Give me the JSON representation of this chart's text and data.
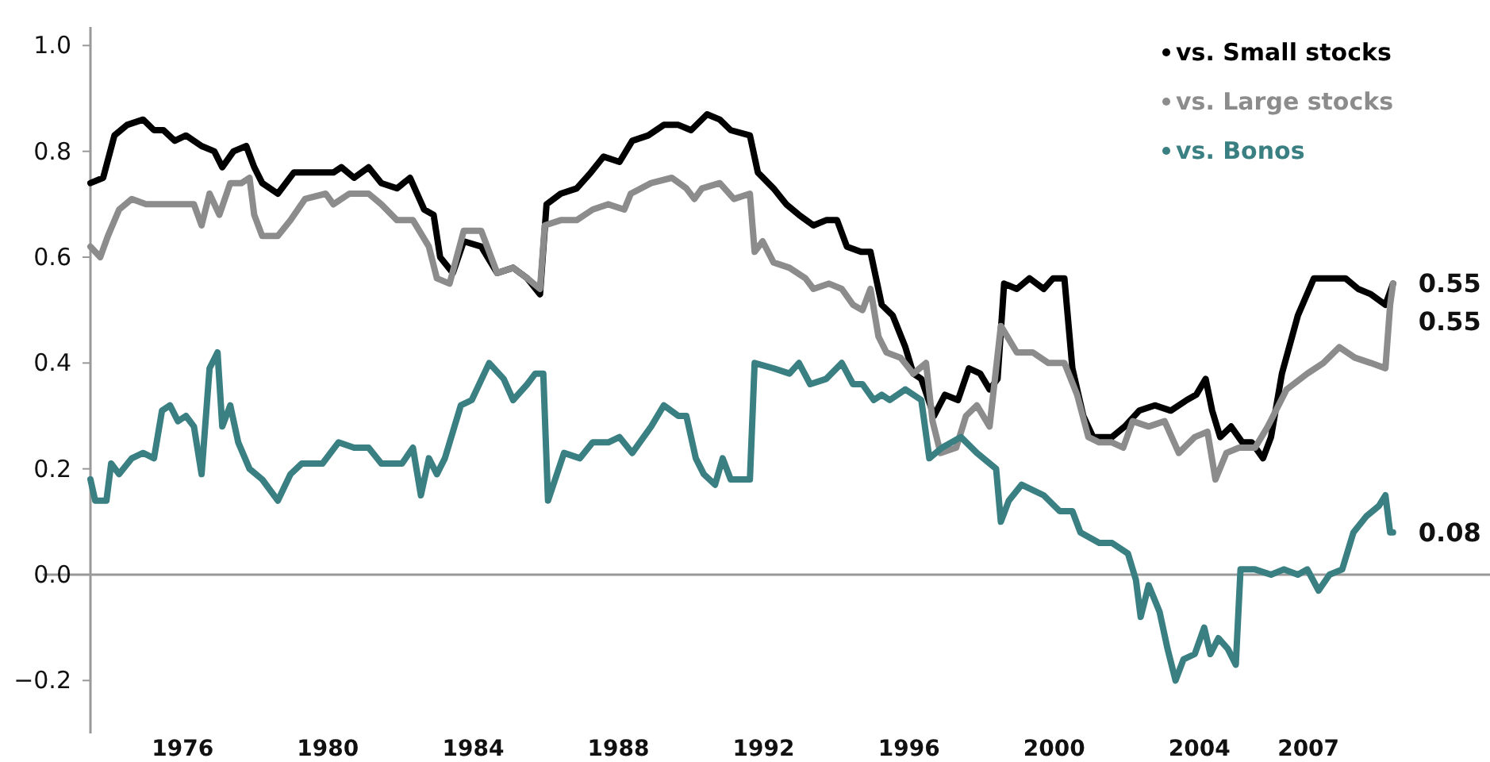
{
  "chart_data": {
    "type": "line",
    "xlim": [
      1973.46,
      2012
    ],
    "ylim": [
      -0.3,
      1.035
    ],
    "xticks": [
      1976,
      1980,
      1984,
      1988,
      1992,
      1996,
      2000,
      2004,
      2007
    ],
    "yticks": [
      {
        "value": -0.2,
        "label": "−0.2"
      },
      {
        "value": 0,
        "label": "0.0"
      },
      {
        "value": 0.2,
        "label": "0.2"
      },
      {
        "value": 0.4,
        "label": "0.4"
      },
      {
        "value": 0.6,
        "label": "0.6"
      },
      {
        "value": 0.8,
        "label": "0.8"
      },
      {
        "value": 1,
        "label": "1.0"
      }
    ],
    "legend": "top right",
    "ref_lines": [
      {
        "axis": "y",
        "value": 0,
        "color": "#999999"
      }
    ],
    "series": [
      {
        "name": "vs. Small stocks",
        "color": "#000000",
        "value_labels": [
          null,
          null,
          null,
          null,
          null,
          null,
          null,
          null,
          null,
          null,
          null,
          null,
          null,
          null,
          null,
          null,
          null,
          null,
          null,
          null,
          null,
          null,
          null,
          null,
          null,
          null,
          null,
          null,
          null,
          null,
          null,
          null,
          null,
          null,
          null,
          null,
          null,
          null,
          null,
          null,
          null,
          null,
          null,
          null,
          null,
          null,
          null,
          null,
          null,
          null,
          null,
          null,
          null,
          null,
          null,
          null,
          null,
          null,
          null,
          null,
          null,
          null,
          null,
          null,
          null,
          null,
          null,
          null,
          null,
          null,
          null,
          null,
          null,
          null,
          null,
          null,
          null,
          null,
          null,
          null,
          null,
          null,
          null,
          null,
          null,
          null,
          null,
          null,
          null,
          null,
          null,
          null,
          null,
          null,
          null,
          null,
          null,
          null,
          null,
          null,
          null,
          null,
          null,
          null,
          "0.55"
        ],
        "x": [
          1973.46,
          1973.81,
          1974.12,
          1974.47,
          1974.91,
          1975.21,
          1975.47,
          1975.78,
          1976.09,
          1976.52,
          1976.87,
          1977.09,
          1977.4,
          1977.75,
          1977.97,
          1978.19,
          1978.62,
          1979.06,
          1980.15,
          1980.37,
          1980.72,
          1981.12,
          1981.47,
          1981.9,
          1982.26,
          1982.65,
          1982.91,
          1983.09,
          1983.44,
          1983.74,
          1984.22,
          1984.66,
          1985.1,
          1985.49,
          1985.84,
          1986.02,
          1986.41,
          1986.85,
          1987.24,
          1987.59,
          1988.03,
          1988.38,
          1988.82,
          1989.25,
          1989.65,
          1990,
          1990.44,
          1990.79,
          1991.09,
          1991.62,
          1991.84,
          1992.27,
          1992.62,
          1992.97,
          1993.37,
          1993.72,
          1994.02,
          1994.29,
          1994.68,
          1994.94,
          1995.25,
          1995.55,
          1995.9,
          1996.12,
          1996.34,
          1996.69,
          1996.99,
          1997.35,
          1997.65,
          1997.96,
          1998.22,
          1998.44,
          1998.62,
          1998.97,
          1999.32,
          1999.71,
          1999.97,
          2000.28,
          2000.5,
          2000.8,
          2001.07,
          2001.59,
          2001.94,
          2002.34,
          2002.77,
          2003.21,
          2003.65,
          2003.91,
          2004.17,
          2004.35,
          2004.57,
          2004.87,
          2005.18,
          2005.44,
          2005.75,
          2005.97,
          2006.27,
          2006.71,
          2007.15,
          2007.58,
          2008.02,
          2008.37,
          2008.72,
          2009.12,
          2009.33
        ],
        "values": [
          0.74,
          0.75,
          0.83,
          0.85,
          0.86,
          0.84,
          0.84,
          0.82,
          0.83,
          0.81,
          0.8,
          0.77,
          0.8,
          0.81,
          0.77,
          0.74,
          0.72,
          0.76,
          0.76,
          0.77,
          0.75,
          0.77,
          0.74,
          0.73,
          0.75,
          0.69,
          0.68,
          0.6,
          0.57,
          0.63,
          0.62,
          0.57,
          0.58,
          0.56,
          0.53,
          0.7,
          0.72,
          0.73,
          0.76,
          0.79,
          0.78,
          0.82,
          0.83,
          0.85,
          0.85,
          0.84,
          0.87,
          0.86,
          0.84,
          0.83,
          0.76,
          0.73,
          0.7,
          0.68,
          0.66,
          0.67,
          0.67,
          0.62,
          0.61,
          0.61,
          0.51,
          0.49,
          0.43,
          0.38,
          0.37,
          0.3,
          0.34,
          0.33,
          0.39,
          0.38,
          0.35,
          0.37,
          0.55,
          0.54,
          0.56,
          0.54,
          0.56,
          0.56,
          0.39,
          0.3,
          0.26,
          0.26,
          0.28,
          0.31,
          0.32,
          0.31,
          0.33,
          0.34,
          0.37,
          0.31,
          0.26,
          0.28,
          0.25,
          0.25,
          0.22,
          0.26,
          0.38,
          0.49,
          0.56,
          0.56,
          0.56,
          0.54,
          0.53,
          0.51,
          0.55
        ]
      },
      {
        "name": "vs. Large stocks",
        "color": "#8c8c8c",
        "value_labels": [
          null,
          null,
          null,
          null,
          null,
          null,
          null,
          null,
          null,
          null,
          null,
          null,
          null,
          null,
          null,
          null,
          null,
          null,
          null,
          null,
          null,
          null,
          null,
          null,
          null,
          null,
          null,
          null,
          null,
          null,
          null,
          null,
          null,
          null,
          null,
          null,
          null,
          null,
          null,
          null,
          null,
          null,
          null,
          null,
          null,
          null,
          null,
          null,
          null,
          null,
          null,
          null,
          null,
          null,
          null,
          null,
          null,
          null,
          null,
          null,
          null,
          null,
          null,
          null,
          null,
          null,
          null,
          null,
          null,
          null,
          null,
          null,
          null,
          null,
          null,
          null,
          null,
          null,
          null,
          null,
          null,
          null,
          null,
          null,
          null,
          null,
          null,
          null,
          null,
          null,
          null,
          null,
          null,
          null,
          null,
          null,
          null,
          null,
          null,
          null,
          null,
          "0.55"
        ],
        "x": [
          1973.46,
          1973.73,
          1973.94,
          1974.25,
          1974.6,
          1974.99,
          1975.65,
          1976.31,
          1976.52,
          1976.74,
          1977.01,
          1977.31,
          1977.62,
          1977.84,
          1977.97,
          1978.19,
          1978.62,
          1978.97,
          1979.37,
          1979.94,
          1980.15,
          1980.59,
          1981.12,
          1981.47,
          1981.9,
          1982.34,
          1982.78,
          1983,
          1983.35,
          1983.74,
          1984.22,
          1984.66,
          1985.1,
          1985.49,
          1985.84,
          1985.97,
          1986.41,
          1986.85,
          1987.29,
          1987.72,
          1988.16,
          1988.34,
          1988.9,
          1989.47,
          1989.87,
          1990.09,
          1990.3,
          1990.79,
          1991.18,
          1991.62,
          1991.75,
          1991.97,
          1992.27,
          1992.71,
          1993.15,
          1993.37,
          1993.8,
          1994.15,
          1994.46,
          1994.72,
          1994.94,
          1995.16,
          1995.38,
          1995.77,
          1996.12,
          1996.47,
          1996.65,
          1996.87,
          1997.3,
          1997.57,
          1997.87,
          1998.22,
          1998.53,
          1998.97,
          1999.41,
          1999.84,
          2000.28,
          2000.63,
          2000.94,
          2001.24,
          2001.59,
          2001.9,
          2002.16,
          2002.6,
          2003.04,
          2003.43,
          2003.87,
          2004.22,
          2004.44,
          2004.74,
          2005.09,
          2005.53,
          2005.88,
          2006.4,
          2006.97,
          2007.41,
          2007.85,
          2008.28,
          2008.72,
          2009.12,
          2009.25,
          2009.33
        ],
        "values": [
          0.62,
          0.6,
          0.64,
          0.69,
          0.71,
          0.7,
          0.7,
          0.7,
          0.66,
          0.72,
          0.68,
          0.74,
          0.74,
          0.75,
          0.68,
          0.64,
          0.64,
          0.67,
          0.71,
          0.72,
          0.7,
          0.72,
          0.72,
          0.7,
          0.67,
          0.67,
          0.62,
          0.56,
          0.55,
          0.65,
          0.65,
          0.57,
          0.58,
          0.56,
          0.54,
          0.66,
          0.67,
          0.67,
          0.69,
          0.7,
          0.69,
          0.72,
          0.74,
          0.75,
          0.73,
          0.71,
          0.73,
          0.74,
          0.71,
          0.72,
          0.61,
          0.63,
          0.59,
          0.58,
          0.56,
          0.54,
          0.55,
          0.54,
          0.51,
          0.5,
          0.54,
          0.45,
          0.42,
          0.41,
          0.38,
          0.4,
          0.29,
          0.23,
          0.24,
          0.3,
          0.32,
          0.28,
          0.47,
          0.42,
          0.42,
          0.4,
          0.4,
          0.34,
          0.26,
          0.25,
          0.25,
          0.24,
          0.29,
          0.28,
          0.29,
          0.23,
          0.26,
          0.27,
          0.18,
          0.23,
          0.24,
          0.24,
          0.28,
          0.35,
          0.38,
          0.4,
          0.43,
          0.41,
          0.4,
          0.39,
          0.51,
          0.55
        ]
      },
      {
        "name": "vs. Bonos",
        "color": "#3a7f82",
        "value_labels": [
          null,
          null,
          null,
          null,
          null,
          null,
          null,
          null,
          null,
          null,
          null,
          null,
          null,
          null,
          null,
          null,
          null,
          null,
          null,
          null,
          null,
          null,
          null,
          null,
          null,
          null,
          null,
          null,
          null,
          null,
          null,
          null,
          null,
          null,
          null,
          null,
          null,
          null,
          null,
          null,
          null,
          null,
          null,
          null,
          null,
          null,
          null,
          null,
          null,
          null,
          null,
          null,
          null,
          null,
          null,
          null,
          null,
          null,
          null,
          null,
          null,
          null,
          null,
          null,
          null,
          null,
          null,
          null,
          null,
          null,
          null,
          null,
          null,
          null,
          null,
          null,
          null,
          null,
          null,
          null,
          null,
          null,
          null,
          null,
          null,
          null,
          null,
          null,
          null,
          null,
          null,
          null,
          null,
          null,
          null,
          null,
          null,
          null,
          null,
          null,
          null,
          null,
          null,
          null,
          null,
          null,
          null,
          null,
          null,
          null,
          null,
          null,
          null,
          null,
          null,
          null,
          "0.08"
        ],
        "x": [
          1973.46,
          1973.59,
          1973.9,
          1974.03,
          1974.25,
          1974.6,
          1974.91,
          1975.21,
          1975.43,
          1975.65,
          1975.87,
          1976.09,
          1976.31,
          1976.52,
          1976.74,
          1976.96,
          1977.09,
          1977.31,
          1977.53,
          1977.84,
          1978.19,
          1978.62,
          1978.97,
          1979.28,
          1979.85,
          1980.29,
          1980.72,
          1981.12,
          1981.47,
          1982.04,
          1982.34,
          1982.56,
          1982.78,
          1983,
          1983.22,
          1983.66,
          1983.96,
          1984.44,
          1984.84,
          1985.1,
          1985.49,
          1985.71,
          1985.93,
          1986.06,
          1986.5,
          1986.94,
          1987.29,
          1987.72,
          1988.03,
          1988.38,
          1988.9,
          1989.25,
          1989.65,
          1989.87,
          1990.13,
          1990.35,
          1990.66,
          1990.87,
          1991.09,
          1991.62,
          1991.75,
          1992.27,
          1992.71,
          1992.97,
          1993.28,
          1993.72,
          1994.15,
          1994.46,
          1994.72,
          1995.03,
          1995.25,
          1995.47,
          1995.9,
          1996.34,
          1996.56,
          1996.91,
          1997.43,
          1997.87,
          1998.4,
          1998.53,
          1998.75,
          1999.1,
          1999.71,
          2000.15,
          2000.5,
          2000.72,
          2001.24,
          2001.59,
          2002.03,
          2002.25,
          2002.38,
          2002.6,
          2002.9,
          2003.12,
          2003.34,
          2003.56,
          2003.87,
          2004.13,
          2004.3,
          2004.52,
          2004.78,
          2005,
          2005.13,
          2005.53,
          2005.97,
          2006.32,
          2006.71,
          2006.97,
          2007.28,
          2007.58,
          2007.93,
          2008.24,
          2008.59,
          2008.94,
          2009.12,
          2009.25,
          2009.33
        ],
        "values": [
          0.18,
          0.14,
          0.14,
          0.21,
          0.19,
          0.22,
          0.23,
          0.22,
          0.31,
          0.32,
          0.29,
          0.3,
          0.28,
          0.19,
          0.39,
          0.42,
          0.28,
          0.32,
          0.25,
          0.2,
          0.18,
          0.14,
          0.19,
          0.21,
          0.21,
          0.25,
          0.24,
          0.24,
          0.21,
          0.21,
          0.24,
          0.15,
          0.22,
          0.19,
          0.22,
          0.32,
          0.33,
          0.4,
          0.37,
          0.33,
          0.36,
          0.38,
          0.38,
          0.14,
          0.23,
          0.22,
          0.25,
          0.25,
          0.26,
          0.23,
          0.28,
          0.32,
          0.3,
          0.3,
          0.22,
          0.19,
          0.17,
          0.22,
          0.18,
          0.18,
          0.4,
          0.39,
          0.38,
          0.4,
          0.36,
          0.37,
          0.4,
          0.36,
          0.36,
          0.33,
          0.34,
          0.33,
          0.35,
          0.33,
          0.22,
          0.24,
          0.26,
          0.23,
          0.2,
          0.1,
          0.14,
          0.17,
          0.15,
          0.12,
          0.12,
          0.08,
          0.06,
          0.06,
          0.04,
          -0.01,
          -0.08,
          -0.02,
          -0.07,
          -0.14,
          -0.2,
          -0.16,
          -0.15,
          -0.1,
          -0.15,
          -0.12,
          -0.14,
          -0.17,
          0.01,
          0.01,
          0,
          0.01,
          0,
          0.01,
          -0.03,
          0,
          0.01,
          0.08,
          0.11,
          0.13,
          0.15,
          0.08,
          0.08
        ]
      }
    ]
  }
}
